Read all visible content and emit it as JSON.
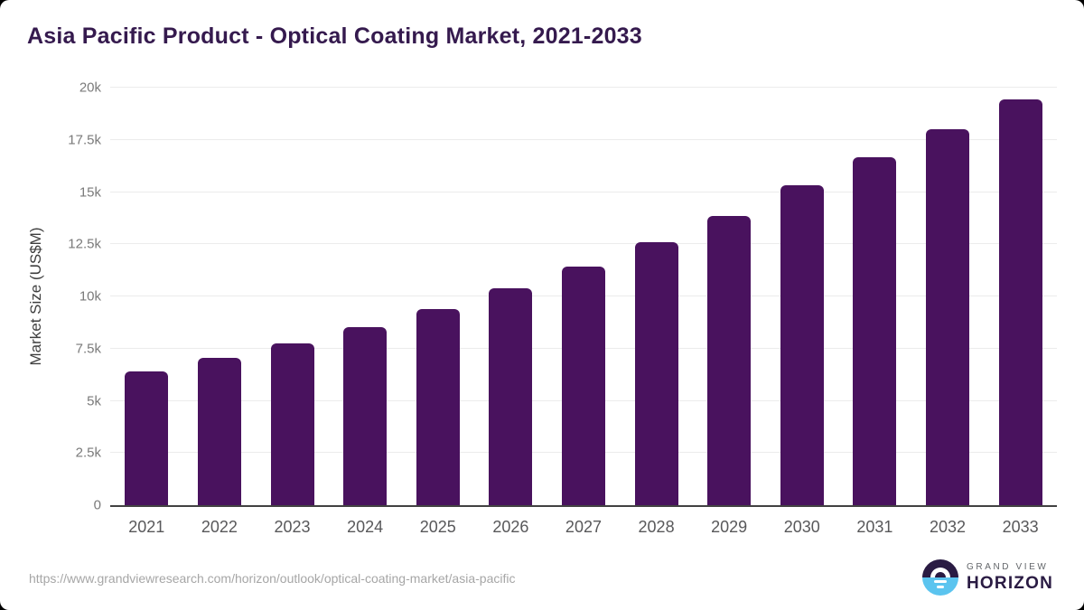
{
  "header": {
    "title": "Asia Pacific Product - Optical Coating Market, 2021-2033"
  },
  "footer": {
    "source_url": "https://www.grandviewresearch.com/horizon/outlook/optical-coating-market/asia-pacific",
    "logo": {
      "icon": "sunrise-horizon-icon",
      "top": "GRAND VIEW",
      "bottom": "HORIZON"
    }
  },
  "colors": {
    "bar": "#49125E",
    "title": "#351A4E",
    "grid": "#ECECEC",
    "axis": "#424242",
    "tick_label": "#7A7A7A",
    "x_label": "#58585A",
    "url": "#A6A6A6",
    "logo_dark": "#2A1B43",
    "logo_blue": "#5BC4EF",
    "logo_gray": "#63666A"
  },
  "chart_data": {
    "type": "bar",
    "title": "Asia Pacific Product - Optical Coating Market, 2021-2033",
    "xlabel": "",
    "ylabel": "Market Size (US$M)",
    "categories": [
      "2021",
      "2022",
      "2023",
      "2024",
      "2025",
      "2026",
      "2027",
      "2028",
      "2029",
      "2030",
      "2031",
      "2032",
      "2033"
    ],
    "values": [
      6410,
      7060,
      7750,
      8540,
      9380,
      10400,
      11420,
      12600,
      13870,
      15340,
      16650,
      18000,
      19440
    ],
    "ylim": [
      0,
      20000
    ],
    "y_ticks": [
      0,
      2500,
      5000,
      7500,
      10000,
      12500,
      15000,
      17500,
      20000
    ],
    "y_tick_labels": [
      "0",
      "2.5k",
      "5k",
      "7.5k",
      "10k",
      "12.5k",
      "15k",
      "17.5k",
      "20k"
    ],
    "grid": true,
    "legend": false,
    "bar_color": "#49125E"
  }
}
